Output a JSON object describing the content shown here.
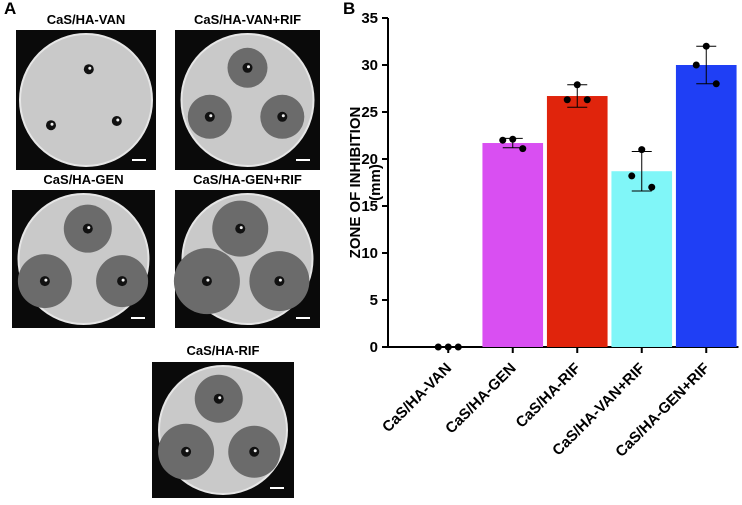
{
  "panel_labels": [
    "A",
    "B"
  ],
  "plates": [
    "CaS/HA-VAN",
    "CaS/HA-VAN+RIF",
    "CaS/HA-GEN",
    "CaS/HA-GEN+RIF",
    "CaS/HA-RIF"
  ],
  "chart_data": {
    "type": "bar",
    "ylabel": [
      "ZONE OF INHIBITION",
      "(mm)"
    ],
    "categories": [
      "CaS/HA-VAN",
      "CaS/HA-GEN",
      "CaS/HA-RIF",
      "CaS/HA-VAN+RIF",
      "CaS/HA-GEN+RIF"
    ],
    "values": [
      0,
      21.7,
      26.7,
      18.7,
      30
    ],
    "errors": [
      0,
      0.5,
      1.2,
      2.1,
      2
    ],
    "points": [
      [
        0,
        0,
        0
      ],
      [
        22.1,
        22,
        21.1
      ],
      [
        27.9,
        26.3,
        26.3
      ],
      [
        21,
        18.2,
        17
      ],
      [
        32,
        30,
        28
      ]
    ],
    "colors": [
      null,
      "#d94ff2",
      "#e0240c",
      "#80f6f8",
      "#1f3ff5"
    ],
    "ylim": [
      0,
      35
    ],
    "yticks": [
      0,
      5,
      10,
      15,
      20,
      25,
      30,
      35
    ]
  }
}
